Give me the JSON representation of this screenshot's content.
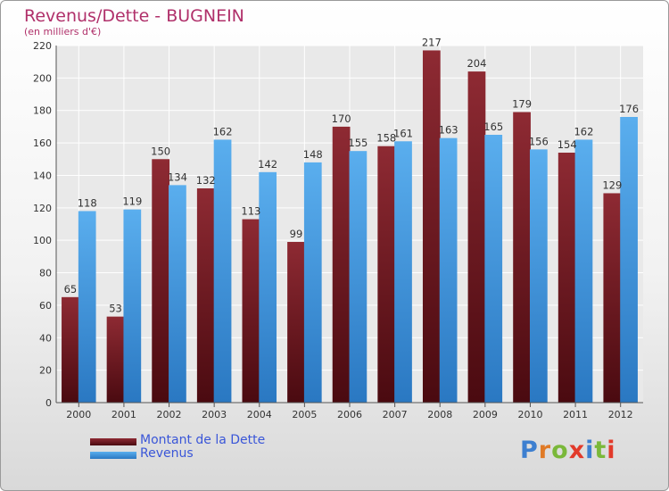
{
  "title": "Revenus/Dette - BUGNEIN",
  "subtitle": "(en milliers d'€)",
  "colors": {
    "dette": "#6e1a22",
    "revenus": "#3d95df",
    "title": "#b0306a",
    "legend_text": "#3a56d8"
  },
  "logo": {
    "text": "Proxiti",
    "letter_colors": [
      "#3d7fd0",
      "#e07a26",
      "#7ab83a",
      "#e23a2a",
      "#3d7fd0",
      "#7ab83a",
      "#e23a2a"
    ]
  },
  "chart_data": {
    "type": "bar",
    "categories": [
      "2000",
      "2001",
      "2002",
      "2003",
      "2004",
      "2005",
      "2006",
      "2007",
      "2008",
      "2009",
      "2010",
      "2011",
      "2012"
    ],
    "series": [
      {
        "name": "Montant de la Dette",
        "values": [
          65,
          53,
          150,
          132,
          113,
          99,
          170,
          158,
          217,
          204,
          179,
          154,
          129
        ]
      },
      {
        "name": "Revenus",
        "values": [
          118,
          119,
          134,
          162,
          142,
          148,
          155,
          161,
          163,
          165,
          156,
          162,
          176
        ]
      }
    ],
    "ylim": [
      0,
      220
    ],
    "yticks": [
      0,
      20,
      40,
      60,
      80,
      100,
      120,
      140,
      160,
      180,
      200,
      220
    ],
    "grid": true,
    "legend_position": "bottom-left"
  }
}
